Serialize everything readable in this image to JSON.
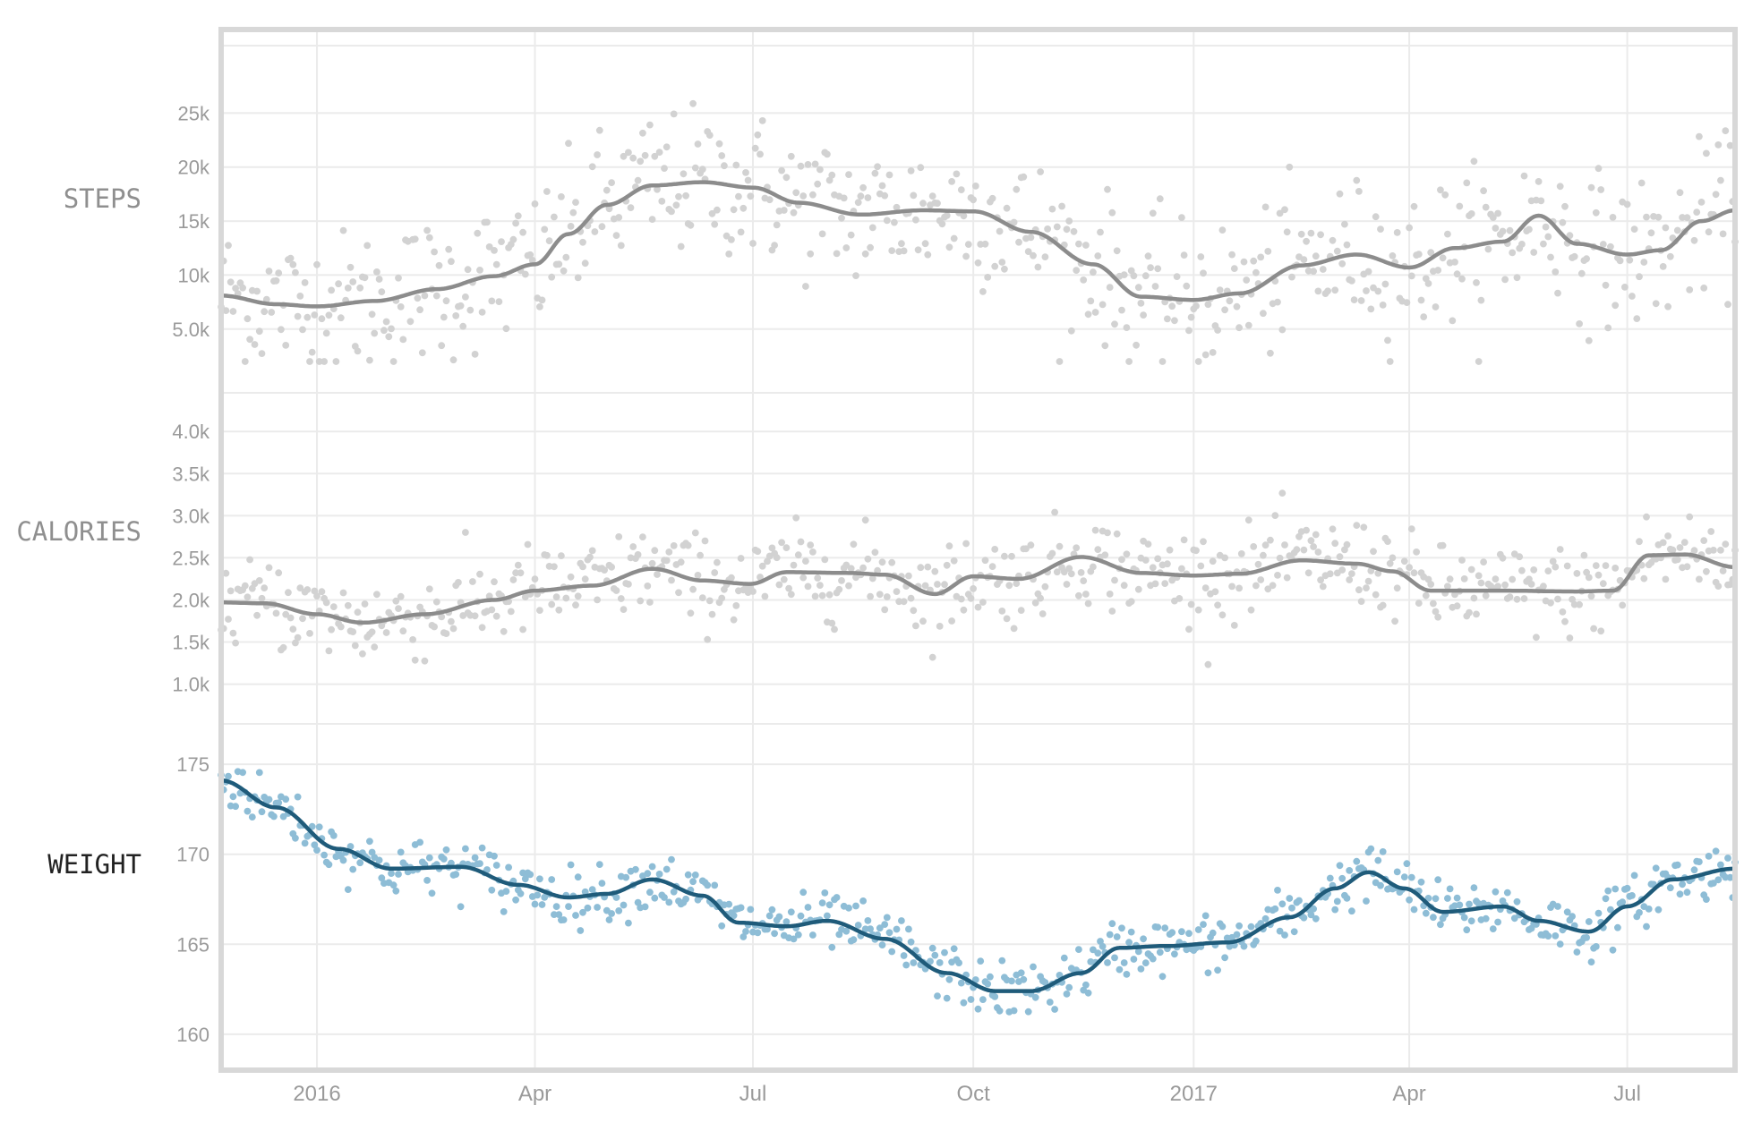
{
  "chart_data": {
    "type": "scatter",
    "x_ticks": [
      "2016",
      "Apr",
      "Jul",
      "Oct",
      "2017",
      "Apr",
      "Jul"
    ],
    "x_tick_dates": [
      "2016-01-01",
      "2016-04-01",
      "2016-07-01",
      "2016-10-01",
      "2017-01-01",
      "2017-04-01",
      "2017-07-01"
    ],
    "x_range": [
      "2015-11-22",
      "2017-08-15"
    ],
    "grid": true,
    "panels": [
      {
        "id": "steps",
        "title": "STEPS",
        "title_color": "#8f8f8f",
        "point_color": "#d2d2d2",
        "line_color": "#8c8c8c",
        "ylim": [
          2000,
          30000
        ],
        "y_ticks": [
          5000,
          10000,
          15000,
          20000,
          25000
        ],
        "y_tick_labels": [
          "5.0k",
          "10k",
          "15k",
          "20k",
          "25k"
        ],
        "noise": 4200,
        "trend": [
          [
            "2015-11-22",
            8100
          ],
          [
            "2015-12-15",
            7300
          ],
          [
            "2016-01-01",
            7100
          ],
          [
            "2016-01-25",
            7600
          ],
          [
            "2016-02-20",
            8700
          ],
          [
            "2016-03-15",
            9900
          ],
          [
            "2016-04-01",
            11000
          ],
          [
            "2016-04-15",
            13800
          ],
          [
            "2016-05-01",
            16500
          ],
          [
            "2016-05-20",
            18300
          ],
          [
            "2016-06-10",
            18600
          ],
          [
            "2016-07-01",
            18100
          ],
          [
            "2016-07-20",
            16700
          ],
          [
            "2016-08-15",
            15600
          ],
          [
            "2016-09-10",
            16000
          ],
          [
            "2016-10-01",
            15900
          ],
          [
            "2016-10-25",
            14000
          ],
          [
            "2016-11-20",
            11000
          ],
          [
            "2016-12-10",
            8000
          ],
          [
            "2017-01-01",
            7700
          ],
          [
            "2017-01-20",
            8300
          ],
          [
            "2017-02-15",
            10900
          ],
          [
            "2017-03-10",
            11900
          ],
          [
            "2017-04-01",
            10700
          ],
          [
            "2017-04-20",
            12500
          ],
          [
            "2017-05-10",
            13100
          ],
          [
            "2017-05-25",
            15500
          ],
          [
            "2017-06-10",
            12900
          ],
          [
            "2017-07-01",
            11900
          ],
          [
            "2017-07-15",
            12300
          ],
          [
            "2017-08-01",
            15000
          ],
          [
            "2017-08-15",
            16000
          ]
        ]
      },
      {
        "id": "calories",
        "title": "CALORIES",
        "title_color": "#8f8f8f",
        "point_color": "#d2d2d2",
        "line_color": "#8c8c8c",
        "ylim": [
          900,
          4300
        ],
        "y_ticks": [
          1000,
          1500,
          2000,
          2500,
          3000,
          3500,
          4000
        ],
        "y_tick_labels": [
          "1.0k",
          "1.5k",
          "2.0k",
          "2.5k",
          "3.0k",
          "3.5k",
          "4.0k"
        ],
        "noise": 330,
        "trend": [
          [
            "2015-11-22",
            1970
          ],
          [
            "2015-12-10",
            1960
          ],
          [
            "2016-01-01",
            1830
          ],
          [
            "2016-01-20",
            1730
          ],
          [
            "2016-02-15",
            1830
          ],
          [
            "2016-03-15",
            2000
          ],
          [
            "2016-04-01",
            2110
          ],
          [
            "2016-04-25",
            2170
          ],
          [
            "2016-05-20",
            2370
          ],
          [
            "2016-06-10",
            2230
          ],
          [
            "2016-06-30",
            2190
          ],
          [
            "2016-07-15",
            2330
          ],
          [
            "2016-08-10",
            2320
          ],
          [
            "2016-08-25",
            2300
          ],
          [
            "2016-09-15",
            2070
          ],
          [
            "2016-10-01",
            2280
          ],
          [
            "2016-10-20",
            2250
          ],
          [
            "2016-11-15",
            2510
          ],
          [
            "2016-12-10",
            2320
          ],
          [
            "2017-01-01",
            2290
          ],
          [
            "2017-01-20",
            2310
          ],
          [
            "2017-02-15",
            2470
          ],
          [
            "2017-03-10",
            2430
          ],
          [
            "2017-03-25",
            2340
          ],
          [
            "2017-04-10",
            2110
          ],
          [
            "2017-05-10",
            2110
          ],
          [
            "2017-06-10",
            2100
          ],
          [
            "2017-06-25",
            2110
          ],
          [
            "2017-07-10",
            2530
          ],
          [
            "2017-07-25",
            2540
          ],
          [
            "2017-08-15",
            2390
          ]
        ]
      },
      {
        "id": "weight",
        "title": "WEIGHT",
        "title_color": "#222222",
        "point_color": "#8ebdd6",
        "line_color": "#1f5b7a",
        "ylim": [
          158.5,
          176.5
        ],
        "y_ticks": [
          160,
          165,
          170,
          175
        ],
        "y_tick_labels": [
          "160",
          "165",
          "170",
          "175"
        ],
        "noise": 0.95,
        "trend": [
          [
            "2015-11-22",
            174.1
          ],
          [
            "2015-12-15",
            172.6
          ],
          [
            "2016-01-10",
            170.3
          ],
          [
            "2016-02-01",
            169.2
          ],
          [
            "2016-03-01",
            169.3
          ],
          [
            "2016-03-25",
            168.3
          ],
          [
            "2016-04-15",
            167.6
          ],
          [
            "2016-05-01",
            167.8
          ],
          [
            "2016-05-20",
            168.6
          ],
          [
            "2016-06-10",
            167.7
          ],
          [
            "2016-06-25",
            166.2
          ],
          [
            "2016-07-15",
            166.0
          ],
          [
            "2016-08-01",
            166.3
          ],
          [
            "2016-08-25",
            165.3
          ],
          [
            "2016-09-20",
            163.4
          ],
          [
            "2016-10-10",
            162.4
          ],
          [
            "2016-10-25",
            162.4
          ],
          [
            "2016-11-15",
            163.4
          ],
          [
            "2016-12-01",
            164.8
          ],
          [
            "2016-12-20",
            164.9
          ],
          [
            "2017-01-15",
            165.1
          ],
          [
            "2017-02-10",
            166.5
          ],
          [
            "2017-03-01",
            168.1
          ],
          [
            "2017-03-15",
            169.0
          ],
          [
            "2017-03-30",
            168.1
          ],
          [
            "2017-04-15",
            166.8
          ],
          [
            "2017-05-10",
            167.1
          ],
          [
            "2017-05-25",
            166.3
          ],
          [
            "2017-06-15",
            165.7
          ],
          [
            "2017-07-01",
            167.1
          ],
          [
            "2017-07-20",
            168.6
          ],
          [
            "2017-08-15",
            169.2
          ]
        ]
      }
    ]
  }
}
